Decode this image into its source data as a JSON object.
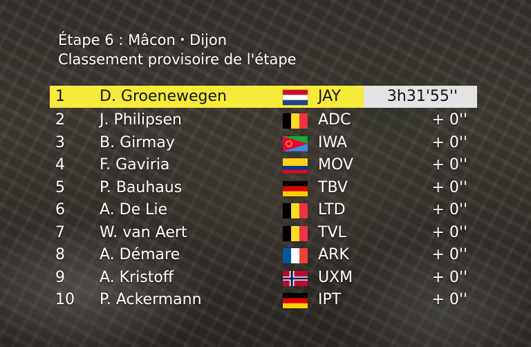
{
  "header": {
    "line1_start": "Étape 6 : Mâcon",
    "line1_sep": "•",
    "line1_end": "Dijon",
    "line2": "Classement provisoire de l'étape"
  },
  "rows": [
    {
      "pos": "1",
      "name": "D. Groenewegen",
      "flag": "netherlands-flag-icon",
      "team": "JAY",
      "time": "3h31'55''"
    },
    {
      "pos": "2",
      "name": "J. Philipsen",
      "flag": "belgium-flag-icon",
      "team": "ADC",
      "time": "+ 0''"
    },
    {
      "pos": "3",
      "name": "B. Girmay",
      "flag": "eritrea-flag-icon",
      "team": "IWA",
      "time": "+ 0''"
    },
    {
      "pos": "4",
      "name": "F. Gaviria",
      "flag": "colombia-flag-icon",
      "team": "MOV",
      "time": "+ 0''"
    },
    {
      "pos": "5",
      "name": "P. Bauhaus",
      "flag": "germany-flag-icon",
      "team": "TBV",
      "time": "+ 0''"
    },
    {
      "pos": "6",
      "name": "A. De Lie",
      "flag": "belgium-flag-icon",
      "team": "LTD",
      "time": "+ 0''"
    },
    {
      "pos": "7",
      "name": "W. van Aert",
      "flag": "belgium-flag-icon",
      "team": "TVL",
      "time": "+ 0''"
    },
    {
      "pos": "8",
      "name": "A. Démare",
      "flag": "france-flag-icon",
      "team": "ARK",
      "time": "+ 0''"
    },
    {
      "pos": "9",
      "name": "A. Kristoff",
      "flag": "norway-flag-icon",
      "team": "UXM",
      "time": "+ 0''"
    },
    {
      "pos": "10",
      "name": "P. Ackermann",
      "flag": "germany-flag-icon",
      "team": "IPT",
      "time": "+ 0''"
    }
  ],
  "colors": {
    "leader_highlight": "#f6ea3b",
    "time_box": "#e3e3e3"
  }
}
